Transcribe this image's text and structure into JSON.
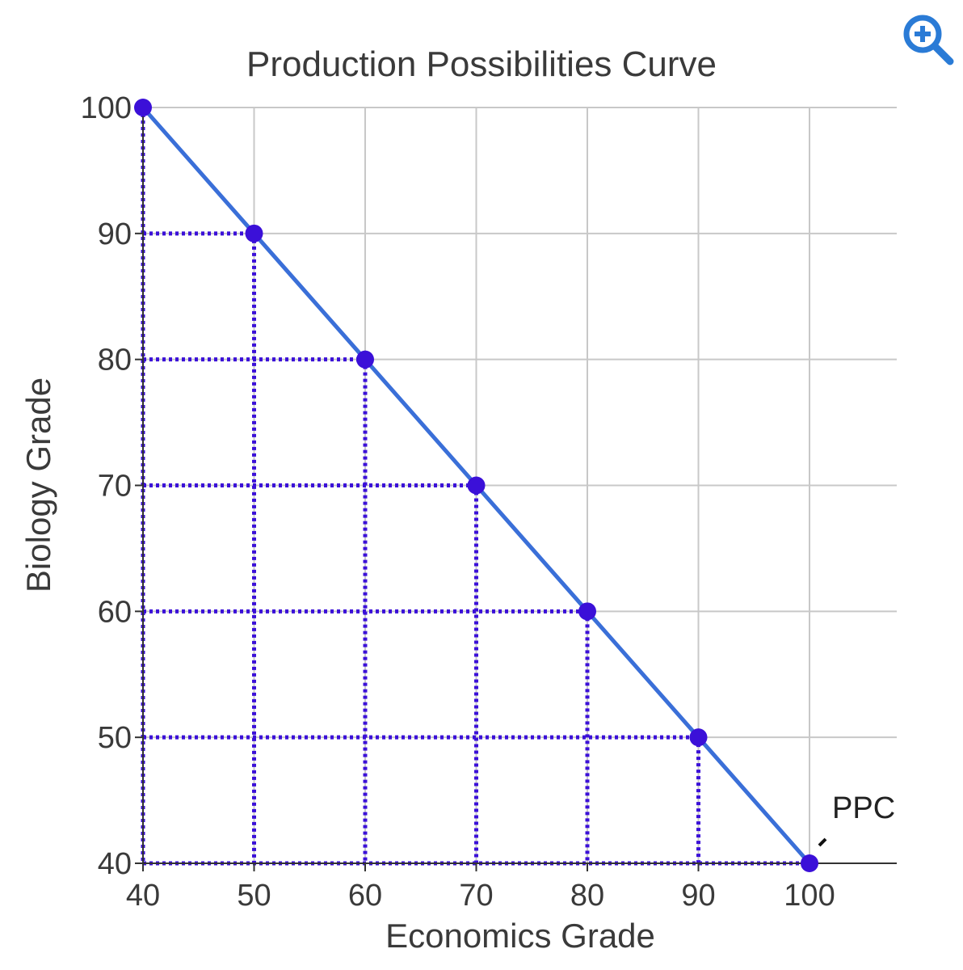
{
  "colors": {
    "background": "#ffffff",
    "grid": "#c8c8c8",
    "axis": "#333333",
    "curve": "#3a6fd8",
    "points": "#3b10d8",
    "dotted": "#3b10d8",
    "text": "#3a3a3a",
    "zoom_icon": "#2a7bd6"
  },
  "toolbar": {
    "zoom_icon": "zoom-in-icon"
  },
  "chart_data": {
    "type": "line",
    "title": "Production Possibilities Curve",
    "xlabel": "Economics Grade",
    "ylabel": "Biology Grade",
    "xlim": [
      40,
      100
    ],
    "ylim": [
      40,
      100
    ],
    "x_ticks": [
      40,
      50,
      60,
      70,
      80,
      90,
      100
    ],
    "y_ticks": [
      40,
      50,
      60,
      70,
      80,
      90,
      100
    ],
    "grid": true,
    "series": [
      {
        "name": "PPC",
        "x": [
          40,
          50,
          60,
          70,
          80,
          90,
          100
        ],
        "y": [
          100,
          90,
          80,
          70,
          60,
          50,
          40
        ]
      }
    ],
    "annotations": [
      {
        "text": "PPC",
        "points_to": [
          100,
          40
        ]
      }
    ]
  }
}
